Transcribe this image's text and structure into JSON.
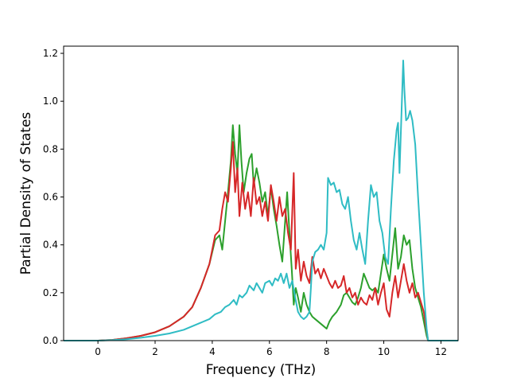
{
  "chart_data": {
    "type": "line",
    "title": "",
    "xlabel": "Frequency (THz)",
    "ylabel": "Partial Density of States",
    "xlim": [
      -1.2,
      12.6
    ],
    "ylim": [
      0.0,
      1.23
    ],
    "xticks": [
      0,
      2,
      4,
      6,
      8,
      10,
      12
    ],
    "xtick_labels": [
      "0",
      "2",
      "4",
      "6",
      "8",
      "10",
      "12"
    ],
    "yticks": [
      0.0,
      0.2,
      0.4,
      0.6,
      0.8,
      1.0,
      1.2
    ],
    "ytick_labels": [
      "0.0",
      "0.2",
      "0.4",
      "0.6",
      "0.8",
      "1.0",
      "1.2"
    ],
    "grid": false,
    "legend": "none",
    "series": [
      {
        "color": "#2ca02c",
        "points": [
          [
            -1.2,
            0
          ],
          [
            0,
            0
          ],
          [
            0.5,
            0.003
          ],
          [
            1,
            0.01
          ],
          [
            1.5,
            0.02
          ],
          [
            2,
            0.035
          ],
          [
            2.5,
            0.06
          ],
          [
            3,
            0.1
          ],
          [
            3.3,
            0.14
          ],
          [
            3.6,
            0.22
          ],
          [
            3.9,
            0.32
          ],
          [
            4.1,
            0.42
          ],
          [
            4.25,
            0.44
          ],
          [
            4.35,
            0.38
          ],
          [
            4.45,
            0.5
          ],
          [
            4.55,
            0.62
          ],
          [
            4.65,
            0.75
          ],
          [
            4.72,
            0.9
          ],
          [
            4.8,
            0.78
          ],
          [
            4.88,
            0.7
          ],
          [
            4.95,
            0.9
          ],
          [
            5.02,
            0.75
          ],
          [
            5.1,
            0.62
          ],
          [
            5.2,
            0.7
          ],
          [
            5.3,
            0.76
          ],
          [
            5.38,
            0.78
          ],
          [
            5.45,
            0.65
          ],
          [
            5.55,
            0.72
          ],
          [
            5.65,
            0.66
          ],
          [
            5.75,
            0.58
          ],
          [
            5.85,
            0.62
          ],
          [
            5.95,
            0.52
          ],
          [
            6.05,
            0.64
          ],
          [
            6.15,
            0.55
          ],
          [
            6.25,
            0.48
          ],
          [
            6.35,
            0.4
          ],
          [
            6.45,
            0.33
          ],
          [
            6.55,
            0.5
          ],
          [
            6.62,
            0.62
          ],
          [
            6.7,
            0.45
          ],
          [
            6.78,
            0.3
          ],
          [
            6.85,
            0.15
          ],
          [
            6.92,
            0.22
          ],
          [
            7.0,
            0.18
          ],
          [
            7.1,
            0.12
          ],
          [
            7.2,
            0.2
          ],
          [
            7.3,
            0.15
          ],
          [
            7.4,
            0.12
          ],
          [
            7.5,
            0.1
          ],
          [
            7.6,
            0.09
          ],
          [
            7.7,
            0.08
          ],
          [
            7.8,
            0.07
          ],
          [
            7.9,
            0.06
          ],
          [
            8.0,
            0.05
          ],
          [
            8.1,
            0.08
          ],
          [
            8.2,
            0.1
          ],
          [
            8.35,
            0.12
          ],
          [
            8.5,
            0.15
          ],
          [
            8.6,
            0.19
          ],
          [
            8.7,
            0.2
          ],
          [
            8.8,
            0.18
          ],
          [
            8.9,
            0.16
          ],
          [
            9.0,
            0.15
          ],
          [
            9.1,
            0.18
          ],
          [
            9.2,
            0.22
          ],
          [
            9.3,
            0.28
          ],
          [
            9.4,
            0.25
          ],
          [
            9.5,
            0.22
          ],
          [
            9.6,
            0.21
          ],
          [
            9.7,
            0.22
          ],
          [
            9.8,
            0.2
          ],
          [
            9.9,
            0.28
          ],
          [
            10.0,
            0.36
          ],
          [
            10.1,
            0.3
          ],
          [
            10.2,
            0.25
          ],
          [
            10.3,
            0.36
          ],
          [
            10.4,
            0.47
          ],
          [
            10.5,
            0.3
          ],
          [
            10.6,
            0.35
          ],
          [
            10.7,
            0.44
          ],
          [
            10.8,
            0.4
          ],
          [
            10.9,
            0.42
          ],
          [
            11.0,
            0.3
          ],
          [
            11.1,
            0.22
          ],
          [
            11.2,
            0.18
          ],
          [
            11.3,
            0.14
          ],
          [
            11.4,
            0.08
          ],
          [
            11.5,
            0.02
          ],
          [
            11.55,
            0
          ],
          [
            12.6,
            0
          ]
        ]
      },
      {
        "color": "#d62728",
        "points": [
          [
            -1.2,
            0
          ],
          [
            0,
            0
          ],
          [
            0.5,
            0.003
          ],
          [
            1,
            0.01
          ],
          [
            1.5,
            0.02
          ],
          [
            2,
            0.035
          ],
          [
            2.5,
            0.06
          ],
          [
            3,
            0.1
          ],
          [
            3.3,
            0.14
          ],
          [
            3.6,
            0.22
          ],
          [
            3.9,
            0.32
          ],
          [
            4.1,
            0.44
          ],
          [
            4.25,
            0.46
          ],
          [
            4.35,
            0.55
          ],
          [
            4.45,
            0.62
          ],
          [
            4.55,
            0.58
          ],
          [
            4.65,
            0.72
          ],
          [
            4.72,
            0.83
          ],
          [
            4.8,
            0.62
          ],
          [
            4.88,
            0.72
          ],
          [
            4.95,
            0.52
          ],
          [
            5.05,
            0.66
          ],
          [
            5.15,
            0.55
          ],
          [
            5.25,
            0.62
          ],
          [
            5.35,
            0.52
          ],
          [
            5.45,
            0.68
          ],
          [
            5.55,
            0.57
          ],
          [
            5.65,
            0.6
          ],
          [
            5.75,
            0.52
          ],
          [
            5.85,
            0.58
          ],
          [
            5.95,
            0.5
          ],
          [
            6.05,
            0.65
          ],
          [
            6.15,
            0.58
          ],
          [
            6.25,
            0.5
          ],
          [
            6.35,
            0.6
          ],
          [
            6.45,
            0.52
          ],
          [
            6.55,
            0.55
          ],
          [
            6.65,
            0.45
          ],
          [
            6.75,
            0.38
          ],
          [
            6.85,
            0.7
          ],
          [
            6.92,
            0.3
          ],
          [
            7.0,
            0.38
          ],
          [
            7.1,
            0.25
          ],
          [
            7.2,
            0.33
          ],
          [
            7.3,
            0.27
          ],
          [
            7.4,
            0.24
          ],
          [
            7.5,
            0.35
          ],
          [
            7.6,
            0.28
          ],
          [
            7.7,
            0.3
          ],
          [
            7.8,
            0.26
          ],
          [
            7.9,
            0.3
          ],
          [
            8.0,
            0.27
          ],
          [
            8.1,
            0.24
          ],
          [
            8.2,
            0.22
          ],
          [
            8.3,
            0.25
          ],
          [
            8.4,
            0.22
          ],
          [
            8.5,
            0.23
          ],
          [
            8.6,
            0.27
          ],
          [
            8.7,
            0.2
          ],
          [
            8.8,
            0.22
          ],
          [
            8.9,
            0.18
          ],
          [
            9.0,
            0.2
          ],
          [
            9.1,
            0.15
          ],
          [
            9.2,
            0.18
          ],
          [
            9.3,
            0.16
          ],
          [
            9.4,
            0.15
          ],
          [
            9.5,
            0.19
          ],
          [
            9.6,
            0.17
          ],
          [
            9.7,
            0.22
          ],
          [
            9.8,
            0.15
          ],
          [
            9.9,
            0.2
          ],
          [
            10.0,
            0.24
          ],
          [
            10.1,
            0.13
          ],
          [
            10.2,
            0.1
          ],
          [
            10.3,
            0.2
          ],
          [
            10.4,
            0.27
          ],
          [
            10.5,
            0.18
          ],
          [
            10.6,
            0.25
          ],
          [
            10.7,
            0.32
          ],
          [
            10.8,
            0.25
          ],
          [
            10.9,
            0.2
          ],
          [
            11.0,
            0.24
          ],
          [
            11.1,
            0.18
          ],
          [
            11.2,
            0.2
          ],
          [
            11.3,
            0.16
          ],
          [
            11.4,
            0.12
          ],
          [
            11.5,
            0.04
          ],
          [
            11.55,
            0
          ],
          [
            12.6,
            0
          ]
        ]
      },
      {
        "color": "#2fbcc4",
        "points": [
          [
            -1.2,
            0
          ],
          [
            0,
            0
          ],
          [
            0.5,
            0.002
          ],
          [
            1,
            0.006
          ],
          [
            1.5,
            0.012
          ],
          [
            2,
            0.02
          ],
          [
            2.5,
            0.03
          ],
          [
            3,
            0.045
          ],
          [
            3.3,
            0.06
          ],
          [
            3.6,
            0.075
          ],
          [
            3.9,
            0.09
          ],
          [
            4.1,
            0.11
          ],
          [
            4.3,
            0.12
          ],
          [
            4.45,
            0.14
          ],
          [
            4.6,
            0.15
          ],
          [
            4.75,
            0.17
          ],
          [
            4.85,
            0.15
          ],
          [
            4.95,
            0.19
          ],
          [
            5.05,
            0.18
          ],
          [
            5.2,
            0.2
          ],
          [
            5.3,
            0.23
          ],
          [
            5.45,
            0.21
          ],
          [
            5.55,
            0.24
          ],
          [
            5.65,
            0.22
          ],
          [
            5.75,
            0.2
          ],
          [
            5.85,
            0.24
          ],
          [
            6.0,
            0.25
          ],
          [
            6.1,
            0.23
          ],
          [
            6.2,
            0.26
          ],
          [
            6.3,
            0.25
          ],
          [
            6.4,
            0.28
          ],
          [
            6.5,
            0.24
          ],
          [
            6.6,
            0.28
          ],
          [
            6.7,
            0.22
          ],
          [
            6.8,
            0.25
          ],
          [
            6.9,
            0.18
          ],
          [
            7.0,
            0.12
          ],
          [
            7.1,
            0.1
          ],
          [
            7.2,
            0.09
          ],
          [
            7.3,
            0.1
          ],
          [
            7.4,
            0.12
          ],
          [
            7.45,
            0.22
          ],
          [
            7.5,
            0.33
          ],
          [
            7.6,
            0.37
          ],
          [
            7.7,
            0.38
          ],
          [
            7.8,
            0.4
          ],
          [
            7.9,
            0.38
          ],
          [
            8.0,
            0.45
          ],
          [
            8.05,
            0.68
          ],
          [
            8.15,
            0.65
          ],
          [
            8.25,
            0.66
          ],
          [
            8.35,
            0.62
          ],
          [
            8.45,
            0.63
          ],
          [
            8.55,
            0.57
          ],
          [
            8.65,
            0.55
          ],
          [
            8.75,
            0.6
          ],
          [
            8.85,
            0.5
          ],
          [
            8.95,
            0.42
          ],
          [
            9.05,
            0.38
          ],
          [
            9.15,
            0.45
          ],
          [
            9.25,
            0.38
          ],
          [
            9.35,
            0.32
          ],
          [
            9.45,
            0.5
          ],
          [
            9.55,
            0.65
          ],
          [
            9.65,
            0.6
          ],
          [
            9.75,
            0.62
          ],
          [
            9.85,
            0.5
          ],
          [
            9.95,
            0.45
          ],
          [
            10.05,
            0.35
          ],
          [
            10.15,
            0.32
          ],
          [
            10.25,
            0.55
          ],
          [
            10.35,
            0.75
          ],
          [
            10.45,
            0.88
          ],
          [
            10.5,
            0.91
          ],
          [
            10.55,
            0.7
          ],
          [
            10.62,
            0.95
          ],
          [
            10.68,
            1.17
          ],
          [
            10.72,
            1.05
          ],
          [
            10.78,
            0.92
          ],
          [
            10.85,
            0.93
          ],
          [
            10.92,
            0.96
          ],
          [
            11.0,
            0.92
          ],
          [
            11.1,
            0.82
          ],
          [
            11.2,
            0.6
          ],
          [
            11.3,
            0.4
          ],
          [
            11.4,
            0.2
          ],
          [
            11.5,
            0.05
          ],
          [
            11.55,
            0
          ],
          [
            12.6,
            0
          ]
        ]
      }
    ]
  }
}
